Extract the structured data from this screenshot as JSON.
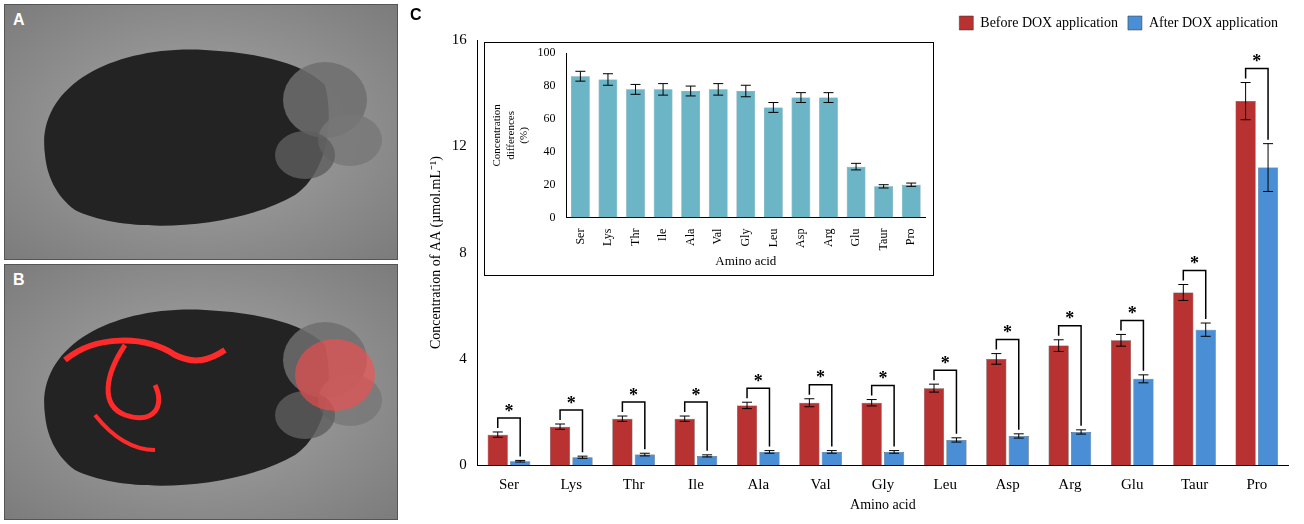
{
  "images": [
    {
      "label": "A"
    },
    {
      "label": "B"
    }
  ],
  "chart_data": [
    {
      "label": "C",
      "type": "bar",
      "x_label": "Amino acid",
      "y_label": "Concentration of AA (µmol.mL⁻¹)",
      "categories": [
        "Ser",
        "Lys",
        "Thr",
        "Ile",
        "Ala",
        "Val",
        "Gly",
        "Leu",
        "Asp",
        "Arg",
        "Glu",
        "Taur",
        "Pro"
      ],
      "series": [
        {
          "name": "Before DOX application",
          "color": "#b83232",
          "values": [
            1.15,
            1.45,
            1.75,
            1.75,
            2.25,
            2.35,
            2.35,
            2.9,
            4.0,
            4.5,
            4.7,
            6.5,
            13.7
          ],
          "errors": [
            0.1,
            0.1,
            0.1,
            0.1,
            0.12,
            0.15,
            0.12,
            0.15,
            0.2,
            0.22,
            0.22,
            0.3,
            0.7
          ]
        },
        {
          "name": "After DOX application",
          "color": "#4a8fd6",
          "values": [
            0.15,
            0.3,
            0.4,
            0.35,
            0.5,
            0.5,
            0.5,
            0.95,
            1.1,
            1.25,
            3.25,
            5.1,
            11.2
          ],
          "errors": [
            0.03,
            0.04,
            0.05,
            0.04,
            0.05,
            0.05,
            0.05,
            0.08,
            0.08,
            0.08,
            0.15,
            0.25,
            0.9
          ]
        }
      ],
      "significance": [
        "*",
        "*",
        "*",
        "*",
        "*",
        "*",
        "*",
        "*",
        "*",
        "*",
        "*",
        "*",
        "*"
      ],
      "ylim": [
        0,
        16
      ],
      "yticks": [
        0,
        4,
        8,
        12,
        16
      ],
      "grid": false,
      "legend": "top right"
    },
    {
      "type": "bar",
      "x_label": "Amino acid",
      "y_label": "Concentration differences (%)",
      "categories": [
        "Ser",
        "Lys",
        "Thr",
        "Ile",
        "Ala",
        "Val",
        "Gly",
        "Leu",
        "Asp",
        "Arg",
        "Glu",
        "Taur",
        "Pro"
      ],
      "values": [
        86,
        84,
        78,
        78,
        77,
        78,
        77,
        67,
        73,
        73,
        31,
        19,
        20
      ],
      "errors": [
        3,
        3.5,
        3,
        3.5,
        3,
        3.5,
        3.5,
        3,
        3,
        3,
        2,
        1,
        1
      ],
      "color": "#6bb5c6",
      "ylim": [
        0,
        100
      ],
      "yticks": [
        0,
        20,
        40,
        60,
        80,
        100
      ],
      "grid": false
    }
  ]
}
